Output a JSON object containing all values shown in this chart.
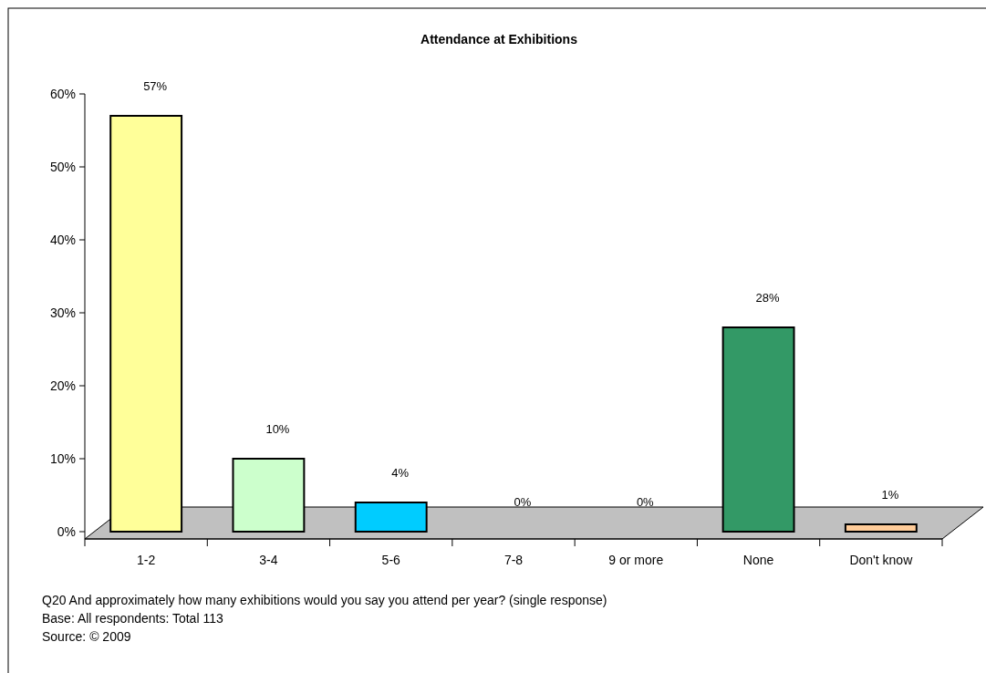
{
  "chart_data": {
    "type": "bar",
    "title": "Attendance at Exhibitions",
    "categories": [
      "1-2",
      "3-4",
      "5-6",
      "7-8",
      "9 or more",
      "None",
      "Don't know"
    ],
    "values": [
      57,
      10,
      4,
      0,
      0,
      28,
      1
    ],
    "colors": [
      "#ffff99",
      "#ccffcc",
      "#00ccff",
      "#cc0000",
      "#969696",
      "#339966",
      "#ffcc99"
    ],
    "value_labels": [
      "57%",
      "10%",
      "4%",
      "0%",
      "0%",
      "28%",
      "1%"
    ],
    "ylim": [
      0,
      60
    ],
    "yticks": [
      {
        "value": 0,
        "label": "0%"
      },
      {
        "value": 10,
        "label": "10%"
      },
      {
        "value": 20,
        "label": "20%"
      },
      {
        "value": 30,
        "label": "30%"
      },
      {
        "value": 40,
        "label": "40%"
      },
      {
        "value": 50,
        "label": "50%"
      },
      {
        "value": 60,
        "label": "60%"
      }
    ],
    "annotations": [
      "Q20 And approximately how many exhibitions would you say you attend per year? (single response)",
      "Base: All respondents: Total 113",
      "Source: © 2009"
    ]
  }
}
